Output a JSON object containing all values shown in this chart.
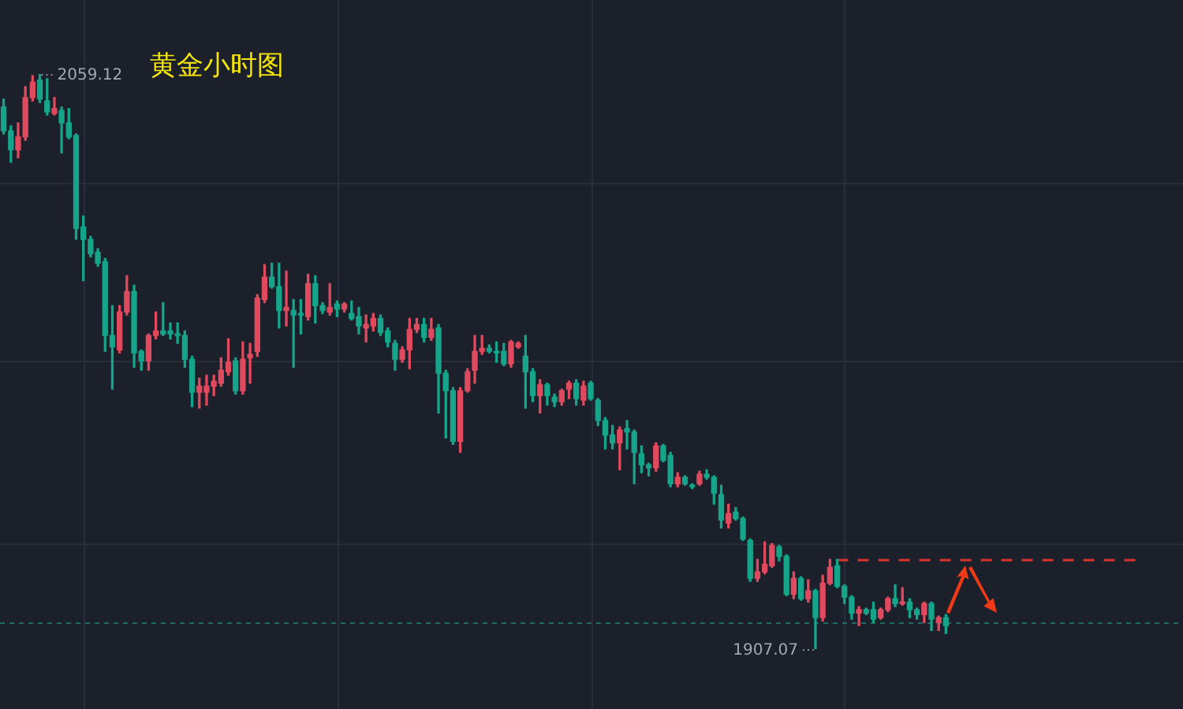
{
  "chart_data": {
    "type": "candlestick",
    "title": "黄金小时图",
    "tick_labels": false,
    "grid": true,
    "yticks": [
      {
        "value": 2030.4,
        "label": null
      },
      {
        "value": 1983.3,
        "label": null
      },
      {
        "value": 1935.0,
        "label": null
      }
    ],
    "categories": [
      null,
      null,
      null,
      null,
      null,
      null,
      null,
      null,
      null,
      null,
      null,
      null,
      null,
      null,
      null,
      null,
      null,
      null,
      null,
      null,
      null,
      null,
      null,
      null,
      null,
      null,
      null,
      null,
      null,
      null,
      null,
      null,
      null,
      null,
      null,
      null,
      null,
      null,
      null,
      null,
      null,
      null,
      null,
      null,
      null,
      null,
      null,
      null,
      null,
      null,
      null,
      null,
      null,
      null,
      null,
      null,
      null,
      null,
      null,
      null,
      null,
      null,
      null,
      null,
      null,
      null,
      null,
      null,
      null,
      null,
      null,
      null,
      null,
      null,
      null,
      null,
      null,
      null,
      null,
      null,
      null,
      null,
      null,
      null,
      null,
      null,
      null,
      null,
      null,
      null,
      null,
      null,
      null,
      null,
      null,
      null,
      null,
      null,
      null,
      null,
      null,
      null,
      null,
      null,
      null,
      null,
      null,
      null,
      null,
      null,
      null,
      null,
      null,
      null,
      null,
      null,
      null,
      null,
      null,
      null,
      null,
      null,
      null,
      null,
      null,
      null,
      null,
      null,
      null,
      null,
      null
    ],
    "ohlc": [
      [
        2050.4,
        2052.5,
        2043.3,
        2044.1
      ],
      [
        2044.1,
        2045.4,
        2035.8,
        2039.1
      ],
      [
        2039.1,
        2046.2,
        2037.0,
        2042.5
      ],
      [
        2042.5,
        2055.8,
        2041.6,
        2052.9
      ],
      [
        2052.9,
        2058.7,
        2052.0,
        2057.0
      ],
      [
        2057.5,
        2059.12,
        2051.6,
        2052.5
      ],
      [
        2052.0,
        2057.9,
        2048.3,
        2049.1
      ],
      [
        2048.7,
        2052.9,
        2048.3,
        2050.0
      ],
      [
        2049.5,
        2050.4,
        2038.3,
        2046.2
      ],
      [
        2046.2,
        2050.0,
        2042.0,
        2042.5
      ],
      [
        2042.9,
        2043.3,
        2015.4,
        2018.3
      ],
      [
        2018.7,
        2021.6,
        2004.5,
        2015.4
      ],
      [
        2015.4,
        2016.2,
        2010.8,
        2011.6
      ],
      [
        2012.0,
        2012.9,
        2008.3,
        2009.1
      ],
      [
        2009.5,
        2010.4,
        1985.8,
        1990.0
      ],
      [
        1990.0,
        1997.9,
        1975.8,
        1987.0
      ],
      [
        1986.2,
        1997.9,
        1985.4,
        1996.2
      ],
      [
        1996.2,
        2005.8,
        1995.4,
        2001.6
      ],
      [
        2001.6,
        2003.3,
        1981.6,
        1985.4
      ],
      [
        1985.8,
        1986.2,
        1980.8,
        1983.3
      ],
      [
        1983.3,
        1990.4,
        1980.8,
        1990.0
      ],
      [
        1990.0,
        1996.2,
        1989.1,
        1991.2
      ],
      [
        1991.2,
        1998.7,
        1990.0,
        1990.4
      ],
      [
        1991.2,
        1993.3,
        1989.1,
        1990.4
      ],
      [
        1990.4,
        1993.3,
        1987.9,
        1990.0
      ],
      [
        1990.0,
        1991.2,
        1981.6,
        1983.7
      ],
      [
        1983.7,
        1984.5,
        1971.2,
        1975.0
      ],
      [
        1975.0,
        1978.7,
        1970.8,
        1976.6
      ],
      [
        1975.0,
        1979.5,
        1971.6,
        1976.6
      ],
      [
        1976.6,
        1979.5,
        1974.1,
        1977.9
      ],
      [
        1977.4,
        1984.1,
        1976.6,
        1980.8
      ],
      [
        1980.4,
        1989.1,
        1979.5,
        1982.9
      ],
      [
        1983.3,
        1984.1,
        1974.5,
        1975.4
      ],
      [
        1975.4,
        1988.3,
        1974.5,
        1983.7
      ],
      [
        1984.1,
        1987.9,
        1977.4,
        1985.0
      ],
      [
        1985.8,
        2000.8,
        1984.5,
        1999.9
      ],
      [
        1999.5,
        2008.7,
        1998.7,
        2005.4
      ],
      [
        2005.4,
        2009.1,
        2002.5,
        2002.9
      ],
      [
        2002.9,
        2009.1,
        1992.0,
        1996.6
      ],
      [
        1996.6,
        2007.0,
        1992.5,
        1997.4
      ],
      [
        1996.6,
        1999.5,
        1981.6,
        1995.4
      ],
      [
        1995.8,
        1999.5,
        1990.4,
        1995.4
      ],
      [
        1995.0,
        2006.2,
        1994.1,
        2003.7
      ],
      [
        2003.7,
        2005.8,
        1993.3,
        1997.9
      ],
      [
        1997.9,
        1998.7,
        1995.8,
        1996.6
      ],
      [
        1996.2,
        2003.7,
        1995.4,
        1997.4
      ],
      [
        1998.3,
        1999.1,
        1995.0,
        1997.0
      ],
      [
        1997.0,
        1998.7,
        1996.2,
        1998.3
      ],
      [
        1995.8,
        1999.1,
        1994.1,
        1994.5
      ],
      [
        1995.0,
        1997.4,
        1990.4,
        1992.5
      ],
      [
        1992.0,
        1995.4,
        1988.3,
        1992.9
      ],
      [
        1992.5,
        1995.8,
        1991.2,
        1994.5
      ],
      [
        1994.5,
        1995.4,
        1990.0,
        1990.8
      ],
      [
        1991.2,
        1992.0,
        1987.0,
        1988.3
      ],
      [
        1987.9,
        1988.7,
        1980.8,
        1983.7
      ],
      [
        1983.7,
        1987.0,
        1982.9,
        1986.2
      ],
      [
        1986.2,
        1994.5,
        1981.2,
        1991.6
      ],
      [
        1991.6,
        1994.5,
        1990.8,
        1992.9
      ],
      [
        1992.9,
        1994.5,
        1988.3,
        1989.5
      ],
      [
        1989.5,
        1994.5,
        1988.7,
        1991.6
      ],
      [
        1992.0,
        1992.9,
        1969.5,
        1980.0
      ],
      [
        1980.0,
        1980.8,
        1962.9,
        1975.4
      ],
      [
        1975.4,
        1976.2,
        1961.2,
        1962.0
      ],
      [
        1962.0,
        1976.2,
        1959.1,
        1975.4
      ],
      [
        1975.4,
        1981.2,
        1975.0,
        1980.4
      ],
      [
        1980.8,
        1990.0,
        1977.4,
        1985.8
      ],
      [
        1985.8,
        1990.0,
        1985.0,
        1986.6
      ],
      [
        1986.6,
        1987.5,
        1985.4,
        1985.8
      ],
      [
        1985.8,
        1988.3,
        1982.9,
        1985.4
      ],
      [
        1985.8,
        1987.9,
        1982.0,
        1982.5
      ],
      [
        1982.5,
        1988.7,
        1981.6,
        1988.3
      ],
      [
        1987.0,
        1988.3,
        1986.6,
        1987.9
      ],
      [
        1984.5,
        1990.0,
        1970.8,
        1980.4
      ],
      [
        1980.4,
        1981.2,
        1972.5,
        1974.1
      ],
      [
        1974.1,
        1978.3,
        1969.5,
        1977.0
      ],
      [
        1977.0,
        1977.4,
        1971.6,
        1974.1
      ],
      [
        1973.7,
        1974.5,
        1971.2,
        1972.5
      ],
      [
        1972.5,
        1975.8,
        1971.6,
        1975.4
      ],
      [
        1975.8,
        1977.9,
        1973.3,
        1977.4
      ],
      [
        1977.4,
        1978.3,
        1971.6,
        1973.3
      ],
      [
        1972.9,
        1977.9,
        1971.6,
        1976.6
      ],
      [
        1977.4,
        1977.9,
        1972.9,
        1973.3
      ],
      [
        1972.9,
        1973.3,
        1966.2,
        1967.5
      ],
      [
        1967.5,
        1968.3,
        1960.0,
        1963.7
      ],
      [
        1963.7,
        1966.2,
        1960.0,
        1961.6
      ],
      [
        1961.6,
        1965.8,
        1954.5,
        1965.0
      ],
      [
        1965.4,
        1967.5,
        1960.0,
        1964.5
      ],
      [
        1964.5,
        1965.0,
        1950.8,
        1959.1
      ],
      [
        1958.7,
        1960.8,
        1953.7,
        1955.8
      ],
      [
        1955.8,
        1956.2,
        1952.9,
        1955.0
      ],
      [
        1955.0,
        1961.6,
        1954.1,
        1960.8
      ],
      [
        1960.8,
        1961.2,
        1956.6,
        1957.0
      ],
      [
        1958.3,
        1959.1,
        1950.0,
        1950.8
      ],
      [
        1950.8,
        1953.7,
        1950.0,
        1952.5
      ],
      [
        1952.5,
        1952.9,
        1950.4,
        1950.8
      ],
      [
        1950.4,
        1950.8,
        1949.5,
        1950.0
      ],
      [
        1950.8,
        1954.1,
        1950.4,
        1953.3
      ],
      [
        1953.3,
        1954.5,
        1952.0,
        1952.5
      ],
      [
        1952.5,
        1952.9,
        1945.4,
        1948.3
      ],
      [
        1947.9,
        1950.4,
        1939.1,
        1941.2
      ],
      [
        1940.4,
        1945.4,
        1939.1,
        1942.9
      ],
      [
        1943.3,
        1944.5,
        1941.2,
        1941.6
      ],
      [
        1941.6,
        1942.0,
        1935.8,
        1936.2
      ],
      [
        1935.8,
        1936.2,
        1925.0,
        1925.8
      ],
      [
        1925.8,
        1930.8,
        1925.0,
        1927.5
      ],
      [
        1927.5,
        1935.4,
        1927.0,
        1929.5
      ],
      [
        1929.1,
        1935.0,
        1928.7,
        1934.5
      ],
      [
        1934.1,
        1934.5,
        1930.4,
        1931.6
      ],
      [
        1931.6,
        1932.0,
        1921.2,
        1921.6
      ],
      [
        1921.6,
        1927.5,
        1920.4,
        1925.8
      ],
      [
        1925.8,
        1926.2,
        1920.0,
        1920.4
      ],
      [
        1920.4,
        1925.4,
        1919.5,
        1922.5
      ],
      [
        1922.5,
        1922.9,
        1907.07,
        1915.4
      ],
      [
        1915.4,
        1926.6,
        1914.5,
        1924.5
      ],
      [
        1924.5,
        1930.8,
        1924.1,
        1928.7
      ],
      [
        1929.1,
        1930.8,
        1923.3,
        1923.7
      ],
      [
        1923.7,
        1924.1,
        1919.1,
        1920.8
      ],
      [
        1920.8,
        1921.2,
        1915.0,
        1916.6
      ],
      [
        1916.6,
        1918.3,
        1913.3,
        1917.5
      ],
      [
        1917.5,
        1917.9,
        1916.2,
        1916.6
      ],
      [
        1917.5,
        1919.5,
        1914.1,
        1915.0
      ],
      [
        1915.4,
        1917.9,
        1915.0,
        1917.5
      ],
      [
        1917.5,
        1920.8,
        1917.0,
        1920.4
      ],
      [
        1920.4,
        1924.1,
        1918.3,
        1919.1
      ],
      [
        1919.1,
        1923.3,
        1918.7,
        1919.5
      ],
      [
        1919.5,
        1920.4,
        1915.4,
        1917.5
      ],
      [
        1917.5,
        1917.9,
        1915.0,
        1916.2
      ],
      [
        1916.2,
        1919.5,
        1914.1,
        1919.1
      ],
      [
        1919.1,
        1919.5,
        1912.0,
        1915.0
      ],
      [
        1914.1,
        1915.8,
        1912.0,
        1915.4
      ],
      [
        1915.4,
        1916.2,
        1911.2,
        1913.3
      ]
    ],
    "colors": [
      "#16a48a",
      "#16a48a",
      "#e04a5f",
      "#e04a5f",
      "#e04a5f",
      "#16a48a",
      "#16a48a",
      "#e04a5f",
      "#16a48a",
      "#16a48a",
      "#16a48a",
      "#16a48a",
      "#16a48a",
      "#16a48a",
      "#16a48a",
      "#16a48a",
      "#e04a5f",
      "#e04a5f",
      "#16a48a",
      "#16a48a",
      "#e04a5f",
      "#e04a5f",
      "#16a48a",
      "#16a48a",
      "#16a48a",
      "#16a48a",
      "#16a48a",
      "#e04a5f",
      "#e04a5f",
      "#e04a5f",
      "#e04a5f",
      "#e04a5f",
      "#16a48a",
      "#e04a5f",
      "#e04a5f",
      "#e04a5f",
      "#e04a5f",
      "#16a48a",
      "#16a48a",
      "#e04a5f",
      "#16a48a",
      "#16a48a",
      "#e04a5f",
      "#16a48a",
      "#16a48a",
      "#e04a5f",
      "#16a48a",
      "#e04a5f",
      "#16a48a",
      "#16a48a",
      "#e04a5f",
      "#e04a5f",
      "#16a48a",
      "#16a48a",
      "#16a48a",
      "#e04a5f",
      "#e04a5f",
      "#e04a5f",
      "#16a48a",
      "#e04a5f",
      "#16a48a",
      "#16a48a",
      "#16a48a",
      "#e04a5f",
      "#e04a5f",
      "#e04a5f",
      "#e04a5f",
      "#16a48a",
      "#16a48a",
      "#16a48a",
      "#e04a5f",
      "#e04a5f",
      "#16a48a",
      "#16a48a",
      "#e04a5f",
      "#16a48a",
      "#16a48a",
      "#e04a5f",
      "#e04a5f",
      "#16a48a",
      "#e04a5f",
      "#16a48a",
      "#16a48a",
      "#16a48a",
      "#16a48a",
      "#e04a5f",
      "#16a48a",
      "#16a48a",
      "#16a48a",
      "#16a48a",
      "#e04a5f",
      "#16a48a",
      "#16a48a",
      "#e04a5f",
      "#16a48a",
      "#16a48a",
      "#e04a5f",
      "#16a48a",
      "#16a48a",
      "#16a48a",
      "#e04a5f",
      "#16a48a",
      "#16a48a",
      "#16a48a",
      "#e04a5f",
      "#e04a5f",
      "#e04a5f",
      "#16a48a",
      "#16a48a",
      "#e04a5f",
      "#16a48a",
      "#e04a5f",
      "#16a48a",
      "#e04a5f",
      "#e04a5f",
      "#16a48a",
      "#16a48a",
      "#16a48a",
      "#e04a5f",
      "#16a48a",
      "#16a48a",
      "#e04a5f",
      "#e04a5f",
      "#16a48a",
      "#e04a5f",
      "#16a48a",
      "#16a48a",
      "#e04a5f",
      "#16a48a",
      "#e04a5f",
      "#16a48a"
    ],
    "ref_lines": [
      {
        "axis": "y",
        "value": 1930.8,
        "color": "#d9342b",
        "line_style": "dashed"
      },
      {
        "axis": "y",
        "value": 1914.1,
        "color": "#1f6b63",
        "line_style": "dotted"
      }
    ],
    "annotations": [
      "2059.12",
      "1907.07"
    ]
  }
}
